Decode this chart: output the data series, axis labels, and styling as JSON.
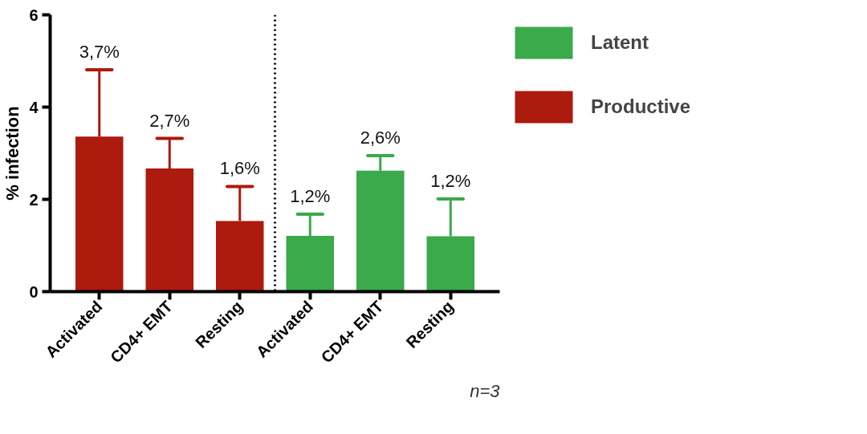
{
  "chart_data": {
    "type": "bar",
    "ylabel": "% infection",
    "categories": [
      "Activated",
      "CD4+ EMT",
      "Resting",
      "Activated",
      "CD4+ EMT",
      "Resting"
    ],
    "series": [
      {
        "name": "Productive",
        "color": "#ad1a0e",
        "values": [
          3.36,
          2.67,
          1.53,
          null,
          null,
          null
        ],
        "errors": [
          [
            3.36,
            4.81
          ],
          [
            2.67,
            3.32
          ],
          [
            1.53,
            2.28
          ],
          null,
          null,
          null
        ]
      },
      {
        "name": "Latent",
        "color": "#3aaa4a",
        "values": [
          null,
          null,
          null,
          1.21,
          2.62,
          1.2
        ],
        "errors": [
          null,
          null,
          null,
          [
            1.21,
            1.68
          ],
          [
            2.62,
            2.95
          ],
          [
            1.2,
            2.01
          ]
        ]
      }
    ],
    "ylim": [
      0,
      6
    ],
    "yticks": [
      0,
      2,
      4,
      6
    ],
    "grid": false,
    "legend": "right",
    "annotations": [
      "3,7%",
      "2,7%",
      "1,6%",
      "1,2%",
      "2,6%",
      "1,2%",
      "n=3"
    ]
  }
}
